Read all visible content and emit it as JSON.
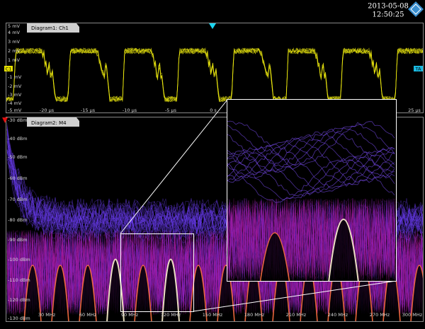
{
  "header": {
    "date": "2013-05-08",
    "time": "12:50:25"
  },
  "diagram1": {
    "title": "Diagram1: Ch1",
    "channel_marker": "C1",
    "trigger_marker": "TA",
    "y_labels": [
      "5 mV",
      "4 mV",
      "3 mV",
      "2 mV",
      "1 mV",
      "-1 mV",
      "-2 mV",
      "-3 mV",
      "-4 mV",
      "-5 mV"
    ],
    "x_labels": [
      "-20 µs",
      "-15 µs",
      "-10 µs",
      "-5 µs",
      "0 s",
      "25 µs"
    ]
  },
  "diagram2": {
    "title": "Diagram2: M4",
    "y_labels": [
      "-30 dBm",
      "-40 dBm",
      "-50 dBm",
      "-60 dBm",
      "-70 dBm",
      "-80 dBm",
      "-90 dBm",
      "-100 dBm",
      "-110 dBm",
      "-120 dBm",
      "-130 dBm"
    ],
    "x_labels": [
      "30 MHz",
      "60 MHz",
      "90 MHz",
      "120 MHz",
      "150 MHz",
      "180 MHz",
      "210 MHz",
      "240 MHz",
      "270 MHz",
      "300 MHz"
    ]
  }
}
